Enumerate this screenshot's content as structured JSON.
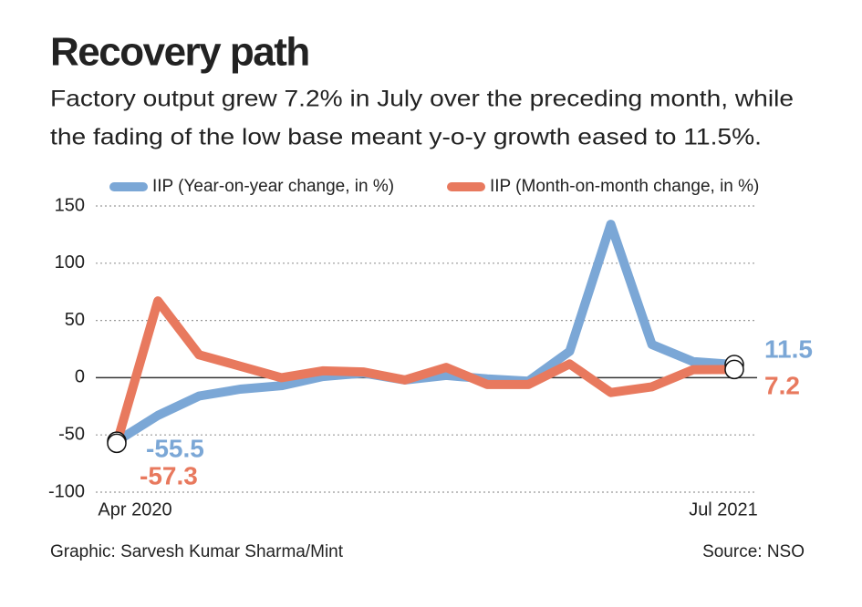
{
  "chart_data": {
    "type": "line",
    "title": "Recovery path",
    "subtitle": [
      "Factory output grew 7.2% in July over the preceding month, while",
      "the fading of the low base meant y-o-y growth eased to 11.5%."
    ],
    "categories": [
      "Apr 2020",
      null,
      null,
      null,
      null,
      null,
      null,
      null,
      null,
      null,
      null,
      null,
      null,
      null,
      null,
      "Jul 2021"
    ],
    "series": [
      {
        "name": "IIP (Year-on-year change, in %)",
        "color": "#7ba7d6",
        "values": [
          -55.5,
          -33,
          -16,
          -10,
          -7,
          1,
          4,
          -2,
          2,
          -1,
          -3,
          23,
          134,
          29,
          14,
          11.5
        ]
      },
      {
        "name": "IIP (Month-on-month change, in %)",
        "color": "#e8795e",
        "values": [
          -57.3,
          67,
          20,
          10,
          0,
          6,
          5,
          -2,
          9,
          -6,
          -6,
          12,
          -13,
          -8,
          7,
          7.2
        ]
      }
    ],
    "ylim": [
      -100,
      150
    ],
    "yticks": [
      150,
      100,
      50,
      0,
      -50,
      -100
    ],
    "grid": true,
    "credit": "Graphic: Sarvesh Kumar Sharma/Mint",
    "source": "Source: NSO"
  }
}
